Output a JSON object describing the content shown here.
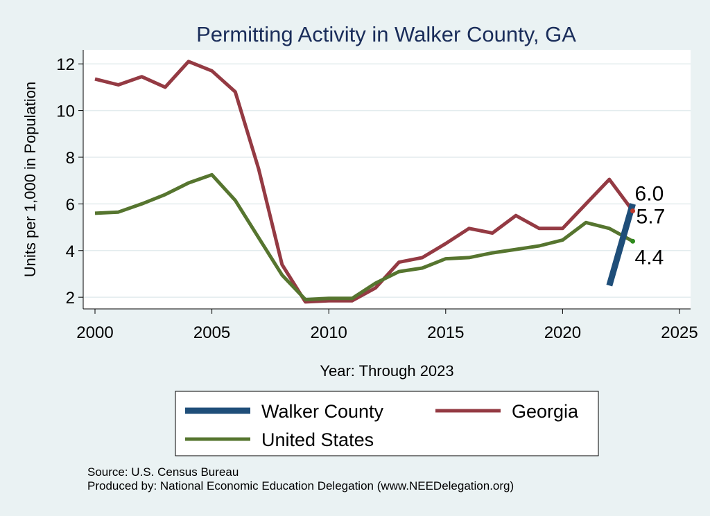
{
  "chart_data": {
    "type": "line",
    "title": "Permitting Activity in Walker County, GA",
    "xlabel": "Year: Through 2023",
    "ylabel": "Units per 1,000 in Population",
    "xlim": [
      2000,
      2025
    ],
    "ylim": [
      1.5,
      12.6
    ],
    "x_ticks": [
      2000,
      2005,
      2010,
      2015,
      2020,
      2025
    ],
    "y_ticks": [
      2,
      4,
      6,
      8,
      10,
      12
    ],
    "grid": "horizontal",
    "legend_position": "bottom",
    "series": [
      {
        "name": "Walker County",
        "color": "#1f4e79",
        "x": [
          2022,
          2023
        ],
        "values": [
          2.5,
          6.0
        ]
      },
      {
        "name": "Georgia",
        "color": "#943a43",
        "x": [
          2000,
          2001,
          2002,
          2003,
          2004,
          2005,
          2006,
          2007,
          2008,
          2009,
          2010,
          2011,
          2012,
          2013,
          2014,
          2015,
          2016,
          2017,
          2018,
          2019,
          2020,
          2021,
          2022,
          2023
        ],
        "values": [
          11.35,
          11.1,
          11.45,
          11.0,
          12.1,
          11.7,
          10.8,
          7.5,
          3.4,
          1.8,
          1.85,
          1.85,
          2.4,
          3.5,
          3.7,
          4.3,
          4.95,
          4.75,
          5.5,
          4.95,
          4.95,
          6.0,
          7.05,
          5.7
        ]
      },
      {
        "name": "United States",
        "color": "#56752f",
        "x": [
          2000,
          2001,
          2002,
          2003,
          2004,
          2005,
          2006,
          2007,
          2008,
          2009,
          2010,
          2011,
          2012,
          2013,
          2014,
          2015,
          2016,
          2017,
          2018,
          2019,
          2020,
          2021,
          2022,
          2023
        ],
        "values": [
          5.6,
          5.65,
          6.0,
          6.4,
          6.9,
          7.25,
          6.15,
          4.55,
          2.95,
          1.9,
          1.95,
          1.95,
          2.6,
          3.1,
          3.25,
          3.65,
          3.7,
          3.9,
          4.05,
          4.2,
          4.45,
          5.2,
          4.95,
          4.4
        ]
      }
    ],
    "end_labels": [
      {
        "text": "6.0",
        "series": "Walker County"
      },
      {
        "text": "5.7",
        "series": "Georgia"
      },
      {
        "text": "4.4",
        "series": "United States"
      }
    ],
    "notes": [
      "Source: U.S. Census Bureau",
      "Produced by: National Economic Education Delegation (www.NEEDelegation.org)"
    ]
  }
}
